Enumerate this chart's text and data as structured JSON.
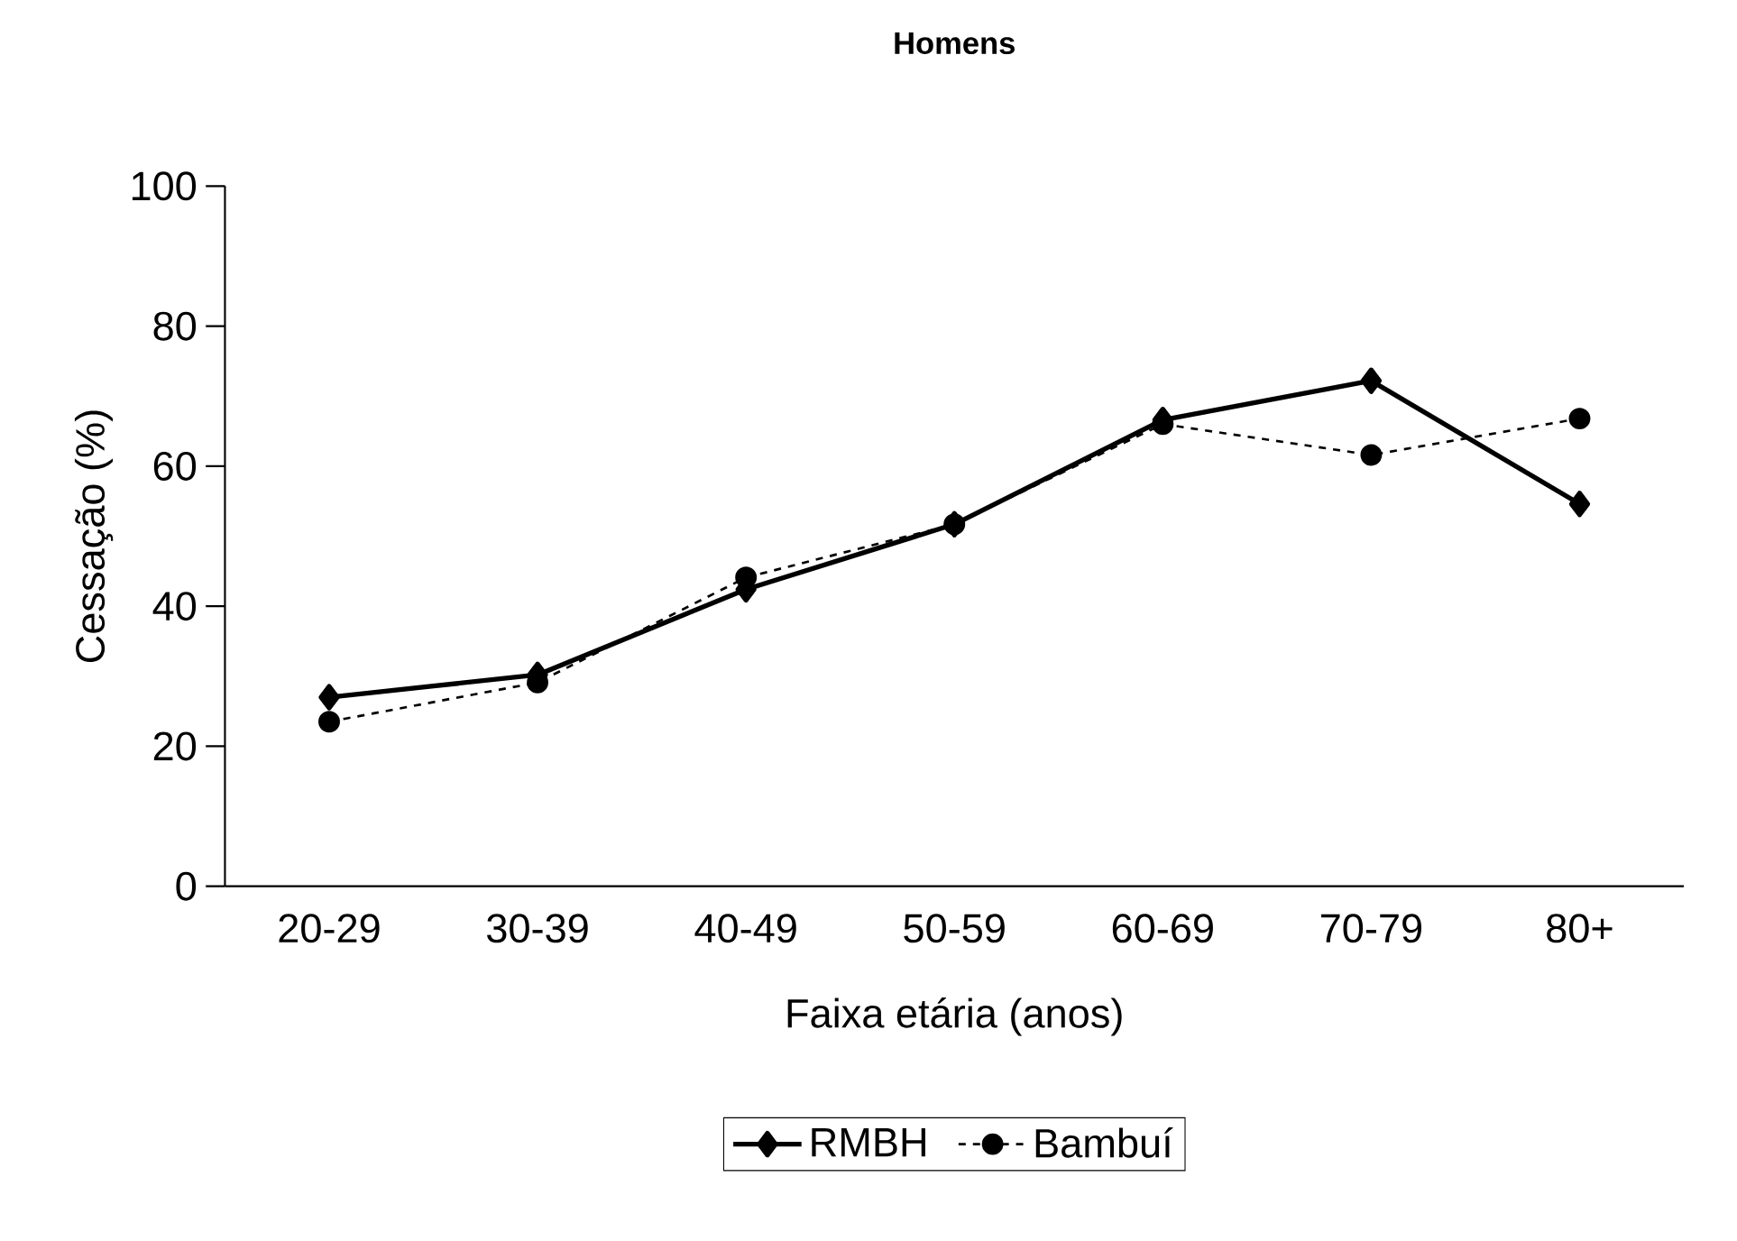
{
  "chart_data": {
    "type": "line",
    "title": "**Homens**",
    "xlabel": "Faixa etária (anos)",
    "ylabel": "Cessação (%)",
    "categories": [
      "20-29",
      "30-39",
      "40-49",
      "50-59",
      "60-69",
      "70-79",
      "80+"
    ],
    "ylim": [
      0,
      100
    ],
    "yticks": [
      0,
      20,
      40,
      60,
      80,
      100
    ],
    "legend": "bottom",
    "grid": false,
    "series": [
      {
        "name": "RMBH",
        "color": "#000000",
        "marker": "diamond",
        "line_style": "solid",
        "values": [
          27,
          30.2,
          42.4,
          51.7,
          66.6,
          72.2,
          54.6
        ]
      },
      {
        "name": "Bambuí",
        "color": "#000000",
        "marker": "circle",
        "line_style": "dashed",
        "values": [
          23.5,
          29.1,
          44.1,
          51.7,
          66,
          61.6,
          66.8
        ]
      }
    ]
  }
}
